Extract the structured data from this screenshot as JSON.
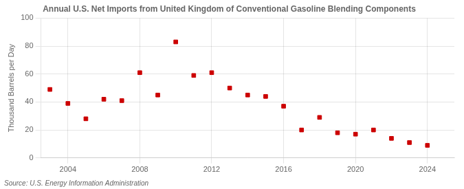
{
  "chart_data": {
    "type": "scatter",
    "title": "Annual U.S. Net Imports from United Kingdom of Conventional Gasoline Blending Components",
    "ylabel": "Thousand Barrels per Day",
    "annotations": [
      "Source: U.S. Energy Information Administration"
    ],
    "x": [
      2003,
      2004,
      2005,
      2006,
      2007,
      2008,
      2009,
      2010,
      2011,
      2012,
      2013,
      2014,
      2015,
      2016,
      2017,
      2018,
      2019,
      2020,
      2021,
      2022,
      2023,
      2024
    ],
    "values": [
      49,
      39,
      28,
      42,
      41,
      61,
      45,
      83,
      59,
      61,
      50,
      45,
      44,
      37,
      20,
      29,
      18,
      17,
      20,
      14,
      11,
      9
    ],
    "color": "#cc0000",
    "marker": "square",
    "xlim": [
      2002.5,
      2025.5
    ],
    "ylim": [
      0,
      100
    ],
    "xticks": [
      2004,
      2008,
      2012,
      2016,
      2020,
      2024
    ],
    "yticks": [
      0,
      20,
      40,
      60,
      80,
      100
    ],
    "grid": true
  }
}
